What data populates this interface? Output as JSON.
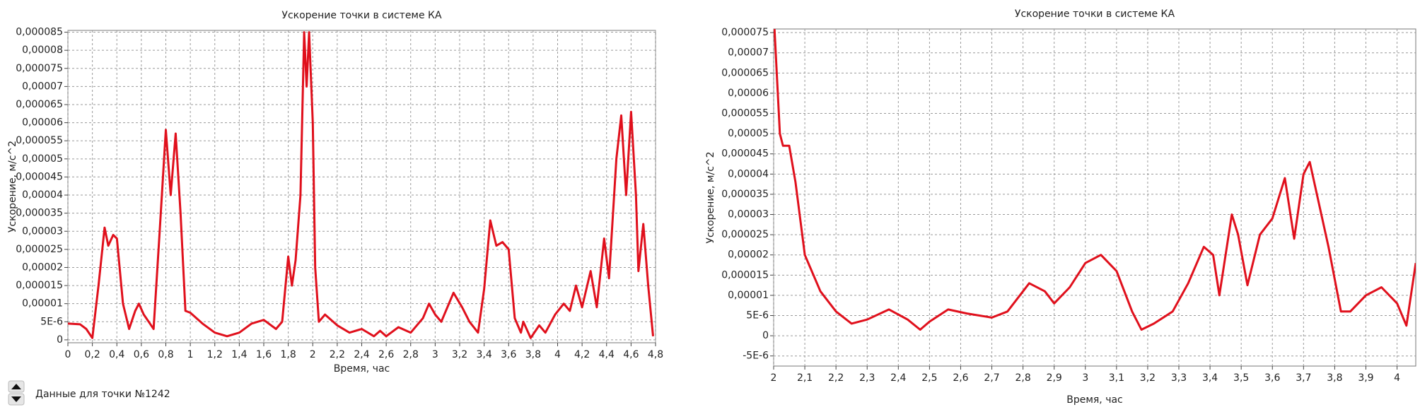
{
  "chart_data": [
    {
      "type": "line",
      "title": "Ускорение точки в системе КА",
      "x_label": "Время, час",
      "y_label": "Ускорение, м/с^2",
      "color": "#e0101c",
      "grid": true,
      "xlim": [
        0,
        4.8
      ],
      "ylim": [
        -8e-07,
        8.55e-05
      ],
      "xticks": [
        0,
        {
          "value": 0.2,
          "label": "0,2"
        },
        {
          "value": 0.4,
          "label": "0,4"
        },
        {
          "value": 0.6,
          "label": "0,6"
        },
        {
          "value": 0.8,
          "label": "0,8"
        },
        1,
        {
          "value": 1.2,
          "label": "1,2"
        },
        {
          "value": 1.4,
          "label": "1,4"
        },
        {
          "value": 1.6,
          "label": "1,6"
        },
        {
          "value": 1.8,
          "label": "1,8"
        },
        2,
        {
          "value": 2.2,
          "label": "2,2"
        },
        {
          "value": 2.4,
          "label": "2,4"
        },
        {
          "value": 2.6,
          "label": "2,6"
        },
        {
          "value": 2.8,
          "label": "2,8"
        },
        3,
        {
          "value": 3.2,
          "label": "3,2"
        },
        {
          "value": 3.4,
          "label": "3,4"
        },
        {
          "value": 3.6,
          "label": "3,6"
        },
        {
          "value": 3.8,
          "label": "3,8"
        },
        4,
        {
          "value": 4.2,
          "label": "4,2"
        },
        {
          "value": 4.4,
          "label": "4,4"
        },
        {
          "value": 4.6,
          "label": "4,6"
        },
        {
          "value": 4.8,
          "label": "4,8"
        }
      ],
      "yticks": [
        0,
        {
          "value": 5e-06,
          "label": "5E-6"
        },
        {
          "value": 1e-05,
          "label": "0,00001"
        },
        {
          "value": 1.5e-05,
          "label": "0,000015"
        },
        {
          "value": 2e-05,
          "label": "0,00002"
        },
        {
          "value": 2.5e-05,
          "label": "0,000025"
        },
        {
          "value": 3e-05,
          "label": "0,00003"
        },
        {
          "value": 3.5e-05,
          "label": "0,000035"
        },
        {
          "value": 4e-05,
          "label": "0,00004"
        },
        {
          "value": 4.5e-05,
          "label": "0,000045"
        },
        {
          "value": 5e-05,
          "label": "0,00005"
        },
        {
          "value": 5.5e-05,
          "label": "0,000055"
        },
        {
          "value": 6e-05,
          "label": "0,00006"
        },
        {
          "value": 6.5e-05,
          "label": "0,000065"
        },
        {
          "value": 7e-05,
          "label": "0,00007"
        },
        {
          "value": 7.5e-05,
          "label": "0,000075"
        },
        {
          "value": 8e-05,
          "label": "0,00008"
        },
        {
          "value": 8.5e-05,
          "label": "0,000085"
        }
      ],
      "x": [
        0,
        0.1,
        0.15,
        0.2,
        0.25,
        0.3,
        0.33,
        0.37,
        0.4,
        0.45,
        0.5,
        0.55,
        0.58,
        0.62,
        0.66,
        0.7,
        0.75,
        0.8,
        0.84,
        0.88,
        0.92,
        0.96,
        1.0,
        1.05,
        1.1,
        1.2,
        1.3,
        1.4,
        1.5,
        1.6,
        1.7,
        1.75,
        1.8,
        1.83,
        1.86,
        1.9,
        1.93,
        1.95,
        1.97,
        2.0,
        2.02,
        2.05,
        2.1,
        2.2,
        2.3,
        2.4,
        2.5,
        2.55,
        2.6,
        2.7,
        2.8,
        2.9,
        2.95,
        3.0,
        3.05,
        3.15,
        3.22,
        3.28,
        3.35,
        3.4,
        3.45,
        3.5,
        3.55,
        3.6,
        3.65,
        3.7,
        3.72,
        3.78,
        3.85,
        3.9,
        3.98,
        4.05,
        4.1,
        4.15,
        4.2,
        4.27,
        4.32,
        4.38,
        4.42,
        4.48,
        4.52,
        4.56,
        4.6,
        4.64,
        4.66,
        4.7,
        4.74,
        4.78
      ],
      "values": [
        4.5e-06,
        4.3e-06,
        3e-06,
        5e-07,
        1.5e-05,
        3.1e-05,
        2.6e-05,
        2.9e-05,
        2.8e-05,
        1e-05,
        3e-06,
        8e-06,
        1e-05,
        7e-06,
        5e-06,
        3e-06,
        3e-05,
        5.8e-05,
        4e-05,
        5.7e-05,
        3.5e-05,
        8e-06,
        7.5e-06,
        6e-06,
        4.5e-06,
        2e-06,
        1e-06,
        2e-06,
        4.5e-06,
        5.5e-06,
        3e-06,
        5e-06,
        2.3e-05,
        1.5e-05,
        2.2e-05,
        4e-05,
        8.5e-05,
        7e-05,
        8.5e-05,
        6e-05,
        2e-05,
        5e-06,
        7e-06,
        4e-06,
        2e-06,
        3e-06,
        1e-06,
        2.5e-06,
        1e-06,
        3.5e-06,
        2e-06,
        6e-06,
        1e-05,
        7e-06,
        5e-06,
        1.3e-05,
        9e-06,
        5e-06,
        2e-06,
        1.4e-05,
        3.3e-05,
        2.6e-05,
        2.7e-05,
        2.5e-05,
        6e-06,
        2e-06,
        5e-06,
        5e-07,
        4e-06,
        2e-06,
        7e-06,
        1e-05,
        8e-06,
        1.5e-05,
        9e-06,
        1.9e-05,
        9e-06,
        2.8e-05,
        1.7e-05,
        5e-05,
        6.2e-05,
        4e-05,
        6.3e-05,
        4e-05,
        1.9e-05,
        3.2e-05,
        1.5e-05,
        1e-06
      ]
    },
    {
      "type": "line",
      "title": "Ускорение точки в системе КА",
      "x_label": "Время, час",
      "y_label": "Ускорение, м/с^2",
      "color": "#e0101c",
      "grid": true,
      "xlim": [
        2,
        4.06
      ],
      "ylim": [
        -7.5e-06,
        7.59e-05
      ],
      "xticks": [
        2,
        {
          "value": 2.1,
          "label": "2,1"
        },
        {
          "value": 2.2,
          "label": "2,2"
        },
        {
          "value": 2.3,
          "label": "2,3"
        },
        {
          "value": 2.4,
          "label": "2,4"
        },
        {
          "value": 2.5,
          "label": "2,5"
        },
        {
          "value": 2.6,
          "label": "2,6"
        },
        {
          "value": 2.7,
          "label": "2,7"
        },
        {
          "value": 2.8,
          "label": "2,8"
        },
        {
          "value": 2.9,
          "label": "2,9"
        },
        3,
        {
          "value": 3.1,
          "label": "3,1"
        },
        {
          "value": 3.2,
          "label": "3,2"
        },
        {
          "value": 3.3,
          "label": "3,3"
        },
        {
          "value": 3.4,
          "label": "3,4"
        },
        {
          "value": 3.5,
          "label": "3,5"
        },
        {
          "value": 3.6,
          "label": "3,6"
        },
        {
          "value": 3.7,
          "label": "3,7"
        },
        {
          "value": 3.8,
          "label": "3,8"
        },
        {
          "value": 3.9,
          "label": "3,9"
        },
        4
      ],
      "yticks": [
        {
          "value": -5e-06,
          "label": "-5E-6"
        },
        0,
        {
          "value": 5e-06,
          "label": "5E-6"
        },
        {
          "value": 1e-05,
          "label": "0,00001"
        },
        {
          "value": 1.5e-05,
          "label": "0,000015"
        },
        {
          "value": 2e-05,
          "label": "0,00002"
        },
        {
          "value": 2.5e-05,
          "label": "0,000025"
        },
        {
          "value": 3e-05,
          "label": "0,00003"
        },
        {
          "value": 3.5e-05,
          "label": "0,000035"
        },
        {
          "value": 4e-05,
          "label": "0,00004"
        },
        {
          "value": 4.5e-05,
          "label": "0,000045"
        },
        {
          "value": 5e-05,
          "label": "0,00005"
        },
        {
          "value": 5.5e-05,
          "label": "0,000055"
        },
        {
          "value": 6e-05,
          "label": "0,00006"
        },
        {
          "value": 6.5e-05,
          "label": "0,000065"
        },
        {
          "value": 7e-05,
          "label": "0,00007"
        },
        {
          "value": 7.5e-05,
          "label": "0,000075"
        }
      ],
      "x": [
        2.0,
        2.02,
        2.03,
        2.05,
        2.07,
        2.1,
        2.15,
        2.2,
        2.25,
        2.3,
        2.37,
        2.43,
        2.47,
        2.5,
        2.56,
        2.62,
        2.7,
        2.75,
        2.82,
        2.87,
        2.9,
        2.95,
        3.0,
        3.05,
        3.1,
        3.15,
        3.18,
        3.22,
        3.28,
        3.33,
        3.38,
        3.41,
        3.43,
        3.47,
        3.49,
        3.52,
        3.56,
        3.6,
        3.64,
        3.67,
        3.7,
        3.72,
        3.78,
        3.82,
        3.85,
        3.9,
        3.95,
        4.0,
        4.03,
        4.06
      ],
      "values": [
        8e-05,
        5e-05,
        4.7e-05,
        4.7e-05,
        3.8e-05,
        2e-05,
        1.1e-05,
        6e-06,
        3e-06,
        4e-06,
        6.5e-06,
        4e-06,
        1.5e-06,
        3.5e-06,
        6.5e-06,
        5.5e-06,
        4.5e-06,
        6e-06,
        1.3e-05,
        1.1e-05,
        8e-06,
        1.2e-05,
        1.8e-05,
        2e-05,
        1.6e-05,
        6e-06,
        1.5e-06,
        3e-06,
        6e-06,
        1.3e-05,
        2.2e-05,
        2e-05,
        1e-05,
        3e-05,
        2.5e-05,
        1.25e-05,
        2.5e-05,
        2.9e-05,
        3.9e-05,
        2.4e-05,
        4e-05,
        4.3e-05,
        2.2e-05,
        6e-06,
        6e-06,
        1e-05,
        1.2e-05,
        8e-06,
        2.5e-06,
        1.8e-05
      ]
    }
  ],
  "controls": {
    "label": "Данные для точки №1242"
  }
}
